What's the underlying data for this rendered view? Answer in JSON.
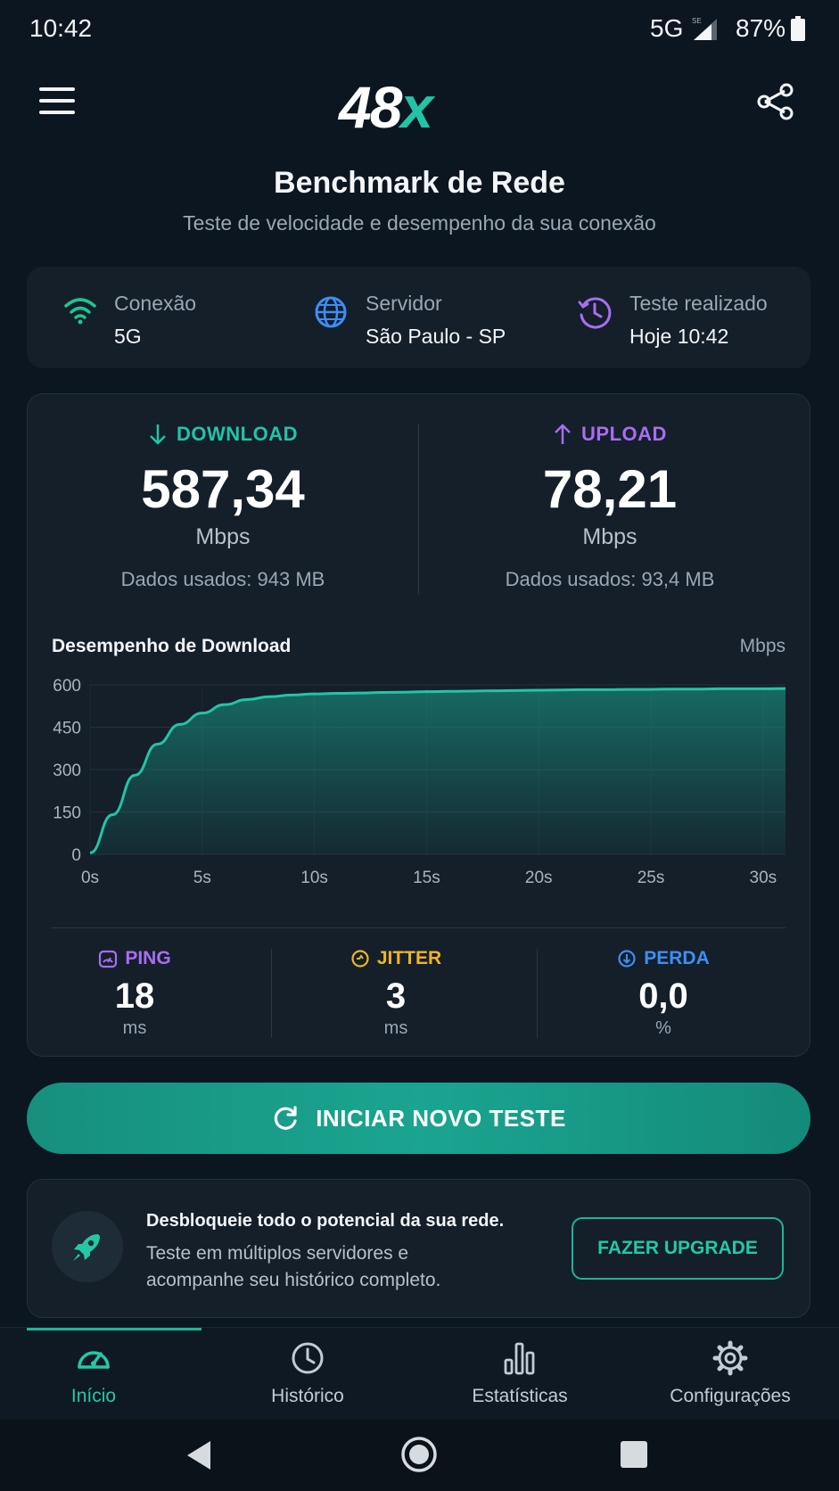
{
  "status_bar": {
    "time": "10:42",
    "network": "5G",
    "signal_badge": "SE",
    "battery": "87%"
  },
  "header": {
    "logo_main": "48",
    "logo_accent": "x",
    "title": "Benchmark de Rede",
    "subtitle": "Teste de velocidade e desempenho da sua conexão"
  },
  "info": [
    {
      "label": "Conexão",
      "value": "5G",
      "icon": "wifi-icon",
      "color": "#23c48f"
    },
    {
      "label": "Servidor",
      "value": "São Paulo - SP",
      "icon": "globe-icon",
      "color": "#3d8ef5"
    },
    {
      "label": "Teste realizado",
      "value": "Hoje 10:42",
      "icon": "clock-icon",
      "color": "#a86ef0"
    }
  ],
  "download": {
    "label": "DOWNLOAD",
    "value": "587,34",
    "unit": "Mbps",
    "data_used": "Dados usados: 943 MB",
    "color": "#23c4a6"
  },
  "upload": {
    "label": "UPLOAD",
    "value": "78,21",
    "unit": "Mbps",
    "data_used": "Dados usados: 93,4 MB",
    "color": "#a86ef0"
  },
  "chart_data": {
    "type": "area",
    "title": "Desempenho de Download",
    "ylabel": "Mbps",
    "xlabel": "",
    "x_ticks": [
      "0s",
      "5s",
      "10s",
      "15s",
      "20s",
      "25s",
      "30s"
    ],
    "y_ticks": [
      "0",
      "150",
      "300",
      "450",
      "600"
    ],
    "xlim": [
      0,
      31
    ],
    "ylim": [
      0,
      600
    ],
    "grid": true,
    "color": "#23c4a6",
    "series": [
      {
        "x": [
          0,
          1,
          2,
          3,
          4,
          5,
          6,
          7,
          8,
          9,
          10,
          11,
          12,
          13,
          14,
          15,
          16,
          17,
          18,
          19,
          20,
          21,
          22,
          23,
          24,
          25,
          26,
          27,
          28,
          29,
          30,
          31
        ],
        "y": [
          5,
          140,
          280,
          390,
          460,
          500,
          530,
          548,
          558,
          564,
          568,
          570,
          571,
          573,
          574,
          576,
          577,
          578,
          579,
          580,
          581,
          582,
          583,
          583,
          584,
          584,
          585,
          585,
          586,
          586,
          586,
          587
        ]
      }
    ]
  },
  "metrics": [
    {
      "label": "PING",
      "value": "18",
      "unit": "ms",
      "icon": "ping-icon",
      "color": "#a86ef0"
    },
    {
      "label": "JITTER",
      "value": "3",
      "unit": "ms",
      "icon": "jitter-icon",
      "color": "#f0b429"
    },
    {
      "label": "PERDA",
      "value": "0,0",
      "unit": "%",
      "icon": "loss-icon",
      "color": "#3d8ef5"
    }
  ],
  "start_button": {
    "label": "INICIAR NOVO TESTE"
  },
  "promo": {
    "title": "Desbloqueie todo o potencial da sua rede.",
    "text": "Teste em múltiplos servidores e acompanhe seu histórico completo.",
    "button": "FAZER UPGRADE"
  },
  "nav": [
    {
      "label": "Início",
      "icon": "speedometer-icon",
      "active": true
    },
    {
      "label": "Histórico",
      "icon": "clock-icon",
      "active": false
    },
    {
      "label": "Estatísticas",
      "icon": "bar-chart-icon",
      "active": false
    },
    {
      "label": "Configurações",
      "icon": "gear-icon",
      "active": false
    }
  ]
}
